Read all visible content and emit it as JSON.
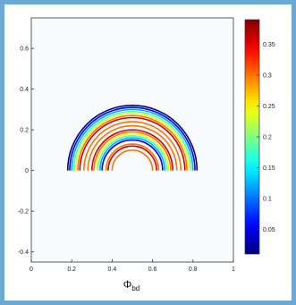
{
  "chart_data": {
    "type": "contour",
    "title": "",
    "xlabel": "Φ",
    "xlabel_subscript": "bd",
    "ylabel": "",
    "xlim": [
      0,
      1
    ],
    "ylim": [
      -0.45,
      0.75
    ],
    "x_ticks": [
      0,
      0.2,
      0.4,
      0.6,
      0.8,
      1
    ],
    "x_tick_labels": [
      "0",
      "0.2",
      "0.4",
      "0.6",
      "0.8",
      "1"
    ],
    "y_ticks": [
      0.6,
      0.4,
      0.2,
      0,
      -0.2,
      -0.4
    ],
    "y_tick_labels": [
      "0.6",
      "0.4",
      "0.2",
      "0",
      "-0.2",
      "-0.4"
    ],
    "colorbar": {
      "range": [
        0.01,
        0.39
      ],
      "ticks": [
        0.35,
        0.3,
        0.25,
        0.2,
        0.15,
        0.1,
        0.05
      ],
      "tick_labels": [
        "0.35",
        "0.3",
        "0.25",
        "0.2",
        "0.15",
        "0.1",
        "0.05"
      ],
      "colormap": "jet"
    },
    "center": [
      0.5,
      0
    ],
    "series": [
      {
        "radius": 0.32,
        "level": 0.01
      },
      {
        "radius": 0.31,
        "level": 0.05
      },
      {
        "radius": 0.3,
        "level": 0.12
      },
      {
        "radius": 0.29,
        "level": 0.18
      },
      {
        "radius": 0.28,
        "level": 0.24
      },
      {
        "radius": 0.27,
        "level": 0.3
      },
      {
        "radius": 0.26,
        "level": 0.36
      },
      {
        "radius": 0.24,
        "level": 0.3
      },
      {
        "radius": 0.22,
        "level": 0.3
      },
      {
        "radius": 0.2,
        "level": 0.36
      },
      {
        "radius": 0.19,
        "level": 0.3
      },
      {
        "radius": 0.18,
        "level": 0.24
      },
      {
        "radius": 0.17,
        "level": 0.18
      },
      {
        "radius": 0.16,
        "level": 0.12
      },
      {
        "radius": 0.15,
        "level": 0.05
      },
      {
        "radius": 0.13,
        "level": 0.3
      },
      {
        "radius": 0.12,
        "level": 0.36
      },
      {
        "radius": 0.1,
        "level": 0.3
      }
    ]
  }
}
